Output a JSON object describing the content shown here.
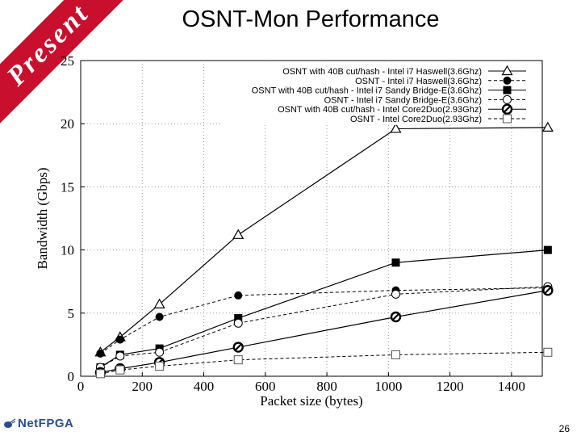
{
  "slide": {
    "banner_text": "Present",
    "title": "OSNT-Mon Performance",
    "logo_text": "NetFPGA",
    "page_number": "26",
    "banner_color": "#c8102e"
  },
  "chart_data": {
    "type": "line",
    "title": "",
    "xlabel": "Packet size (bytes)",
    "ylabel": "Bandwidth (Gbps)",
    "xlim": [
      0,
      1500
    ],
    "ylim": [
      0,
      25
    ],
    "xticks": [
      0,
      200,
      400,
      600,
      800,
      1000,
      1200,
      1400
    ],
    "yticks": [
      0,
      5,
      10,
      15,
      20,
      25
    ],
    "grid": true,
    "legend_position": "top-right",
    "x": [
      64,
      128,
      256,
      512,
      1024,
      1518
    ],
    "series": [
      {
        "name": "OSNT with 40B cut/hash - Intel i7 Haswell(3.6Ghz)",
        "marker": "triangle-open",
        "dashed": false,
        "values": [
          1.9,
          3.1,
          5.7,
          11.2,
          19.6,
          19.7
        ]
      },
      {
        "name": "OSNT - Intel i7 Haswell(3.6Ghz)",
        "marker": "circle-filled",
        "dashed": true,
        "values": [
          1.8,
          2.9,
          4.7,
          6.4,
          6.8,
          7.0
        ]
      },
      {
        "name": "OSNT with 40B cut/hash - Intel i7 Sandy Bridge-E(3.6Ghz)",
        "marker": "square-filled",
        "dashed": false,
        "values": [
          0.7,
          1.7,
          2.2,
          4.6,
          9.0,
          10.0
        ]
      },
      {
        "name": "OSNT - Intel i7 Sandy Bridge-E(3.6Ghz)",
        "marker": "circle-open",
        "dashed": true,
        "values": [
          0.7,
          1.6,
          1.9,
          4.2,
          6.5,
          7.1
        ]
      },
      {
        "name": "OSNT with 40B cut/hash - Intel Core2Duo(2.93Ghz)",
        "marker": "circle-crossed",
        "dashed": false,
        "values": [
          0.3,
          0.6,
          1.1,
          2.3,
          4.7,
          6.8
        ]
      },
      {
        "name": "OSNT - Intel Core2Duo(2.93Ghz)",
        "marker": "square-open",
        "dashed": true,
        "values": [
          0.2,
          0.5,
          0.8,
          1.3,
          1.7,
          1.9
        ]
      }
    ]
  }
}
